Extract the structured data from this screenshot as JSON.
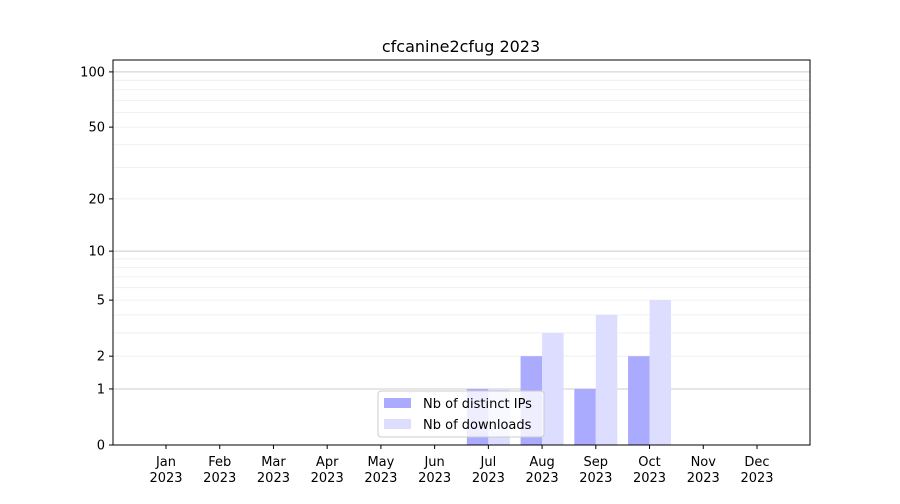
{
  "chart_data": {
    "type": "bar",
    "title": "cfcanine2cfug 2023",
    "xlabel": "",
    "ylabel": "",
    "y_scale": "log(1+y)",
    "ylim": [
      0,
      116
    ],
    "yticks": [
      0,
      1,
      2,
      5,
      10,
      20,
      50,
      100
    ],
    "grid": true,
    "legend_position": "bottom-center",
    "categories": [
      "Jan\n2023",
      "Feb\n2023",
      "Mar\n2023",
      "Apr\n2023",
      "May\n2023",
      "Jun\n2023",
      "Jul\n2023",
      "Aug\n2023",
      "Sep\n2023",
      "Oct\n2023",
      "Nov\n2023",
      "Dec\n2023"
    ],
    "series": [
      {
        "name": "Nb of distinct IPs",
        "color": "#aaaaff",
        "values": [
          0,
          0,
          0,
          0,
          0,
          0,
          1,
          2,
          1,
          2,
          0,
          0
        ]
      },
      {
        "name": "Nb of downloads",
        "color": "#ddddff",
        "values": [
          0,
          0,
          0,
          0,
          0,
          0,
          1,
          3,
          4,
          5,
          0,
          0
        ]
      }
    ]
  }
}
